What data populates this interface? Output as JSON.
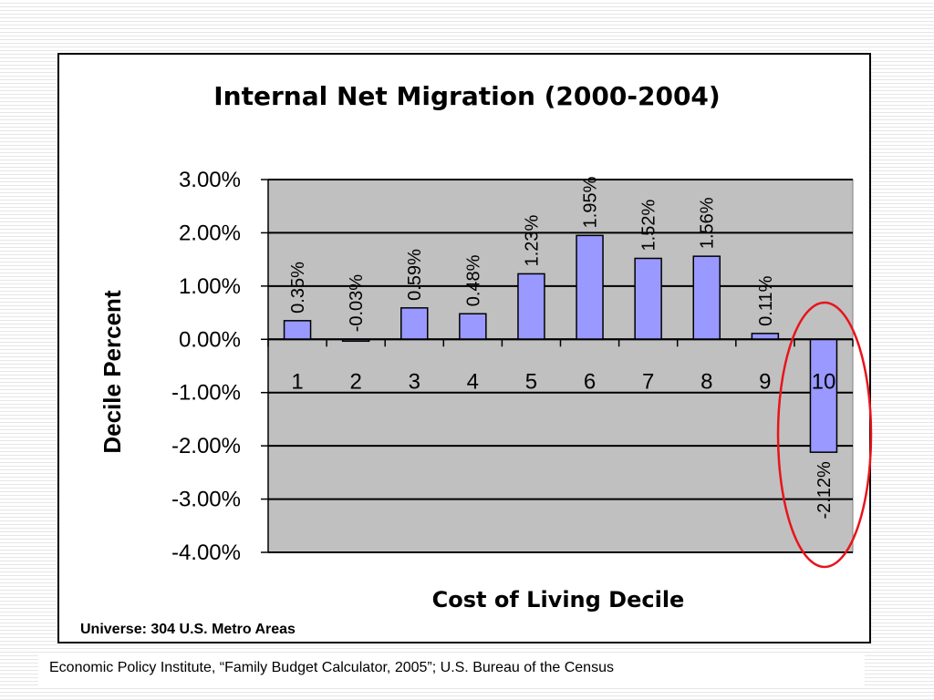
{
  "chart_data": {
    "type": "bar",
    "title": "Internal Net Migration (2000-2004)",
    "xlabel": "Cost of Living Decile",
    "ylabel": "Decile Percent",
    "categories": [
      "1",
      "2",
      "3",
      "4",
      "5",
      "6",
      "7",
      "8",
      "9",
      "10"
    ],
    "values": [
      0.35,
      -0.03,
      0.59,
      0.48,
      1.23,
      1.95,
      1.52,
      1.56,
      0.11,
      -2.12
    ],
    "data_labels": [
      "0.35%",
      "-0.03%",
      "0.59%",
      "0.48%",
      "1.23%",
      "1.95%",
      "1.52%",
      "1.56%",
      "0.11%",
      "-2.12%"
    ],
    "ylim": [
      -4,
      3
    ],
    "yticks": [
      3,
      2,
      1,
      0,
      -1,
      -2,
      -3,
      -4
    ],
    "ytick_labels": [
      "3.00%",
      "2.00%",
      "1.00%",
      "0.00%",
      "-1.00%",
      "-2.00%",
      "-3.00%",
      "-4.00%"
    ],
    "grid": true,
    "legend": "none",
    "highlight_category": "10",
    "colors": {
      "bar_fill": "#9999ff",
      "bar_stroke": "#000000",
      "plot_background": "#c0c0c0",
      "gridline": "#000000",
      "highlight_ellipse": "#e8141b"
    }
  },
  "annotations": {
    "universe": "Universe: 304 U.S. Metro Areas",
    "source": "Economic Policy Institute, “Family Budget Calculator, 2005”; U.S. Bureau of the Census"
  }
}
